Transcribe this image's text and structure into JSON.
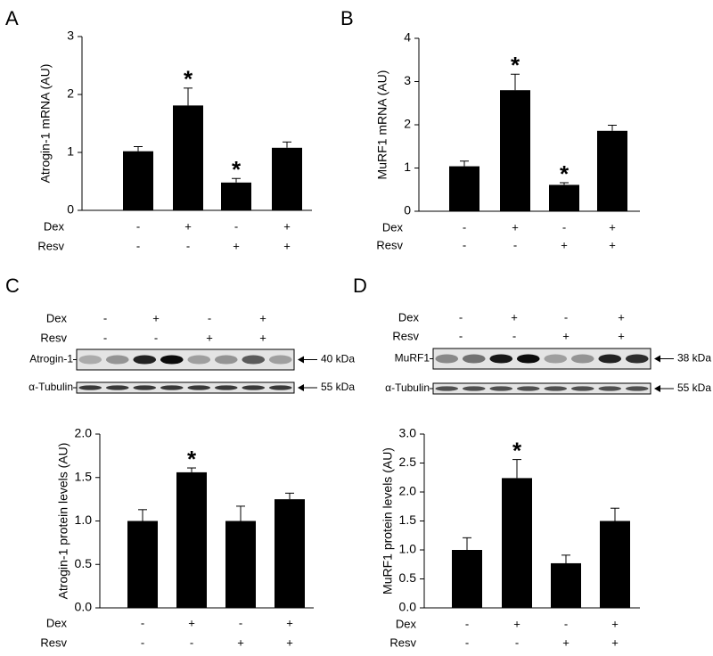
{
  "chart_data": [
    {
      "type": "bar",
      "panel": "A",
      "ylabel": "Atrogin-1 mRNA (AU)",
      "color": "#000000",
      "values": [
        1.02,
        1.81,
        0.48,
        1.08
      ],
      "errors": [
        0.08,
        0.3,
        0.07,
        0.1
      ],
      "ylim": [
        0,
        3
      ],
      "yticks": [
        0,
        1,
        2,
        3
      ],
      "annotations": [
        {
          "bar": 1,
          "text": "*"
        },
        {
          "bar": 2,
          "text": "*"
        }
      ],
      "conditions": [
        {
          "name": "Dex",
          "labels": [
            "-",
            "+",
            "-",
            "+"
          ]
        },
        {
          "name": "Resv",
          "labels": [
            "-",
            "-",
            "+",
            "+"
          ]
        }
      ]
    },
    {
      "type": "bar",
      "panel": "B",
      "ylabel": "MuRF1 mRNA (AU)",
      "color": "#000000",
      "values": [
        1.04,
        2.8,
        0.61,
        1.86
      ],
      "errors": [
        0.12,
        0.37,
        0.05,
        0.13
      ],
      "ylim": [
        0,
        4
      ],
      "yticks": [
        0,
        1,
        2,
        3,
        4
      ],
      "annotations": [
        {
          "bar": 1,
          "text": "*"
        },
        {
          "bar": 2,
          "text": "*"
        }
      ],
      "conditions": [
        {
          "name": "Dex",
          "labels": [
            "-",
            "+",
            "-",
            "+"
          ]
        },
        {
          "name": "Resv",
          "labels": [
            "-",
            "-",
            "+",
            "+"
          ]
        }
      ]
    },
    {
      "type": "bar",
      "panel": "C",
      "ylabel": "Atrogin-1 protein levels (AU)",
      "color": "#000000",
      "values": [
        1.0,
        1.56,
        1.0,
        1.25
      ],
      "errors": [
        0.13,
        0.05,
        0.17,
        0.07
      ],
      "ylim": [
        0,
        2
      ],
      "yticks": [
        {
          "value": 0,
          "label": "0.0"
        },
        0.5,
        {
          "value": 1,
          "label": "1.0"
        },
        1.5,
        {
          "value": 2,
          "label": "2.0"
        }
      ],
      "annotations": [
        {
          "bar": 1,
          "text": "*"
        }
      ],
      "conditions": [
        {
          "name": "Dex",
          "labels": [
            "-",
            "+",
            "-",
            "+"
          ]
        },
        {
          "name": "Resv",
          "labels": [
            "-",
            "-",
            "+",
            "+"
          ]
        }
      ],
      "blot": {
        "conditions": [
          {
            "name": "Dex",
            "labels": [
              "-",
              "+",
              "-",
              "+"
            ]
          },
          {
            "name": "Resv",
            "labels": [
              "-",
              "-",
              "+",
              "+"
            ]
          }
        ],
        "rows": [
          {
            "name": "Atrogin-1",
            "size": "40 kDa"
          },
          {
            "name": "α-Tubulin",
            "size": "55 kDa"
          }
        ]
      }
    },
    {
      "type": "bar",
      "panel": "D",
      "ylabel": "MuRF1 protein levels (AU)",
      "color": "#000000",
      "values": [
        1.0,
        2.24,
        0.77,
        1.5
      ],
      "errors": [
        0.21,
        0.32,
        0.14,
        0.22
      ],
      "ylim": [
        0,
        3
      ],
      "yticks": [
        {
          "value": 0,
          "label": "0.0"
        },
        0.5,
        {
          "value": 1,
          "label": "1.0"
        },
        1.5,
        {
          "value": 2,
          "label": "2.0"
        },
        2.5,
        {
          "value": 3,
          "label": "3.0"
        }
      ],
      "annotations": [
        {
          "bar": 1,
          "text": "*"
        }
      ],
      "conditions": [
        {
          "name": "Dex",
          "labels": [
            "-",
            "+",
            "-",
            "+"
          ]
        },
        {
          "name": "Resv",
          "labels": [
            "-",
            "-",
            "+",
            "+"
          ]
        }
      ],
      "blot": {
        "conditions": [
          {
            "name": "Dex",
            "labels": [
              "-",
              "+",
              "-",
              "+"
            ]
          },
          {
            "name": "Resv",
            "labels": [
              "-",
              "-",
              "+",
              "+"
            ]
          }
        ],
        "rows": [
          {
            "name": "MuRF1",
            "size": "38 kDa"
          },
          {
            "name": "α-Tubulin",
            "size": "55 kDa"
          }
        ]
      }
    }
  ]
}
